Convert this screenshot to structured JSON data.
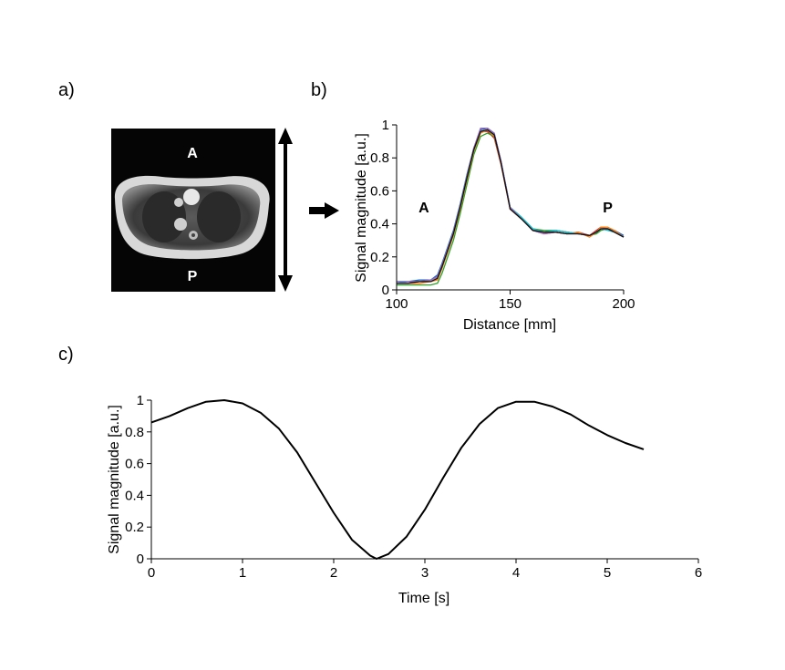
{
  "panel_labels": {
    "a": "a)",
    "b": "b)",
    "c": "c)"
  },
  "mri": {
    "anterior_label": "A",
    "posterior_label": "P"
  },
  "chart_data": [
    {
      "id": "b",
      "type": "line",
      "title": "",
      "xlabel": "Distance [mm]",
      "ylabel": "Signal magnitude [a.u.]",
      "xlim": [
        100,
        200
      ],
      "ylim": [
        0,
        1
      ],
      "xticks": [
        100,
        150,
        200
      ],
      "yticks": [
        0,
        0.2,
        0.4,
        0.6,
        0.8,
        1
      ],
      "ytick_labels": [
        "0",
        "0.2",
        "0.4",
        "0.6",
        "0.8",
        "1"
      ],
      "annotations": [
        {
          "text": "A",
          "x": 112,
          "y": 0.47
        },
        {
          "text": "P",
          "x": 193,
          "y": 0.47
        }
      ],
      "grid": false,
      "x": [
        100,
        105,
        110,
        115,
        118,
        120,
        122,
        125,
        128,
        131,
        134,
        137,
        140,
        143,
        146,
        150,
        155,
        160,
        165,
        170,
        175,
        180,
        185,
        188,
        190,
        193,
        196,
        200
      ],
      "series": [
        {
          "color": "#1f5fbf",
          "values": [
            0.05,
            0.05,
            0.06,
            0.06,
            0.09,
            0.16,
            0.24,
            0.36,
            0.52,
            0.7,
            0.86,
            0.97,
            0.98,
            0.95,
            0.78,
            0.5,
            0.44,
            0.37,
            0.35,
            0.36,
            0.35,
            0.34,
            0.33,
            0.35,
            0.37,
            0.37,
            0.36,
            0.33
          ]
        },
        {
          "color": "#d62728",
          "values": [
            0.04,
            0.04,
            0.05,
            0.05,
            0.07,
            0.14,
            0.22,
            0.34,
            0.5,
            0.68,
            0.85,
            0.96,
            0.96,
            0.92,
            0.76,
            0.49,
            0.43,
            0.36,
            0.34,
            0.35,
            0.34,
            0.35,
            0.33,
            0.36,
            0.38,
            0.37,
            0.35,
            0.32
          ]
        },
        {
          "color": "#2ca02c",
          "values": [
            0.03,
            0.03,
            0.03,
            0.03,
            0.04,
            0.1,
            0.18,
            0.3,
            0.46,
            0.64,
            0.82,
            0.93,
            0.95,
            0.93,
            0.77,
            0.5,
            0.44,
            0.37,
            0.36,
            0.36,
            0.35,
            0.34,
            0.33,
            0.34,
            0.36,
            0.37,
            0.35,
            0.32
          ]
        },
        {
          "color": "#ff7f0e",
          "values": [
            0.04,
            0.04,
            0.04,
            0.05,
            0.06,
            0.13,
            0.21,
            0.33,
            0.49,
            0.67,
            0.84,
            0.95,
            0.97,
            0.93,
            0.77,
            0.49,
            0.43,
            0.36,
            0.35,
            0.35,
            0.34,
            0.35,
            0.32,
            0.35,
            0.38,
            0.38,
            0.36,
            0.32
          ]
        },
        {
          "color": "#17becf",
          "values": [
            0.04,
            0.05,
            0.05,
            0.06,
            0.08,
            0.15,
            0.23,
            0.35,
            0.51,
            0.69,
            0.85,
            0.96,
            0.97,
            0.94,
            0.78,
            0.5,
            0.44,
            0.37,
            0.35,
            0.36,
            0.35,
            0.34,
            0.33,
            0.35,
            0.37,
            0.36,
            0.35,
            0.32
          ]
        },
        {
          "color": "#9467bd",
          "values": [
            0.05,
            0.05,
            0.05,
            0.06,
            0.08,
            0.15,
            0.23,
            0.35,
            0.51,
            0.69,
            0.86,
            0.98,
            0.98,
            0.95,
            0.78,
            0.5,
            0.43,
            0.36,
            0.34,
            0.35,
            0.34,
            0.34,
            0.33,
            0.35,
            0.37,
            0.37,
            0.35,
            0.32
          ]
        },
        {
          "color": "#111111",
          "values": [
            0.04,
            0.04,
            0.05,
            0.05,
            0.07,
            0.14,
            0.22,
            0.34,
            0.5,
            0.68,
            0.85,
            0.96,
            0.97,
            0.94,
            0.77,
            0.49,
            0.43,
            0.36,
            0.35,
            0.35,
            0.34,
            0.34,
            0.33,
            0.35,
            0.37,
            0.37,
            0.35,
            0.32
          ]
        }
      ]
    },
    {
      "id": "c",
      "type": "line",
      "title": "",
      "xlabel": "Time [s]",
      "ylabel": "Signal magnitude [a.u.]",
      "xlim": [
        0,
        6
      ],
      "ylim": [
        0,
        1
      ],
      "xticks": [
        0,
        1,
        2,
        3,
        4,
        5,
        6
      ],
      "yticks": [
        0,
        0.2,
        0.4,
        0.6,
        0.8,
        1
      ],
      "ytick_labels": [
        "0",
        "0.2",
        "0.4",
        "0.6",
        "0.8",
        "1"
      ],
      "grid": false,
      "x": [
        0,
        0.2,
        0.4,
        0.6,
        0.8,
        1.0,
        1.2,
        1.4,
        1.6,
        1.8,
        2.0,
        2.2,
        2.4,
        2.47,
        2.6,
        2.8,
        3.0,
        3.2,
        3.4,
        3.6,
        3.8,
        4.0,
        4.2,
        4.4,
        4.6,
        4.8,
        5.0,
        5.2,
        5.4
      ],
      "series": [
        {
          "color": "#000000",
          "values": [
            0.86,
            0.9,
            0.95,
            0.99,
            1.0,
            0.98,
            0.92,
            0.82,
            0.67,
            0.48,
            0.29,
            0.12,
            0.02,
            0.0,
            0.03,
            0.14,
            0.31,
            0.51,
            0.7,
            0.85,
            0.95,
            0.99,
            0.99,
            0.96,
            0.91,
            0.84,
            0.78,
            0.73,
            0.69
          ]
        }
      ]
    }
  ]
}
